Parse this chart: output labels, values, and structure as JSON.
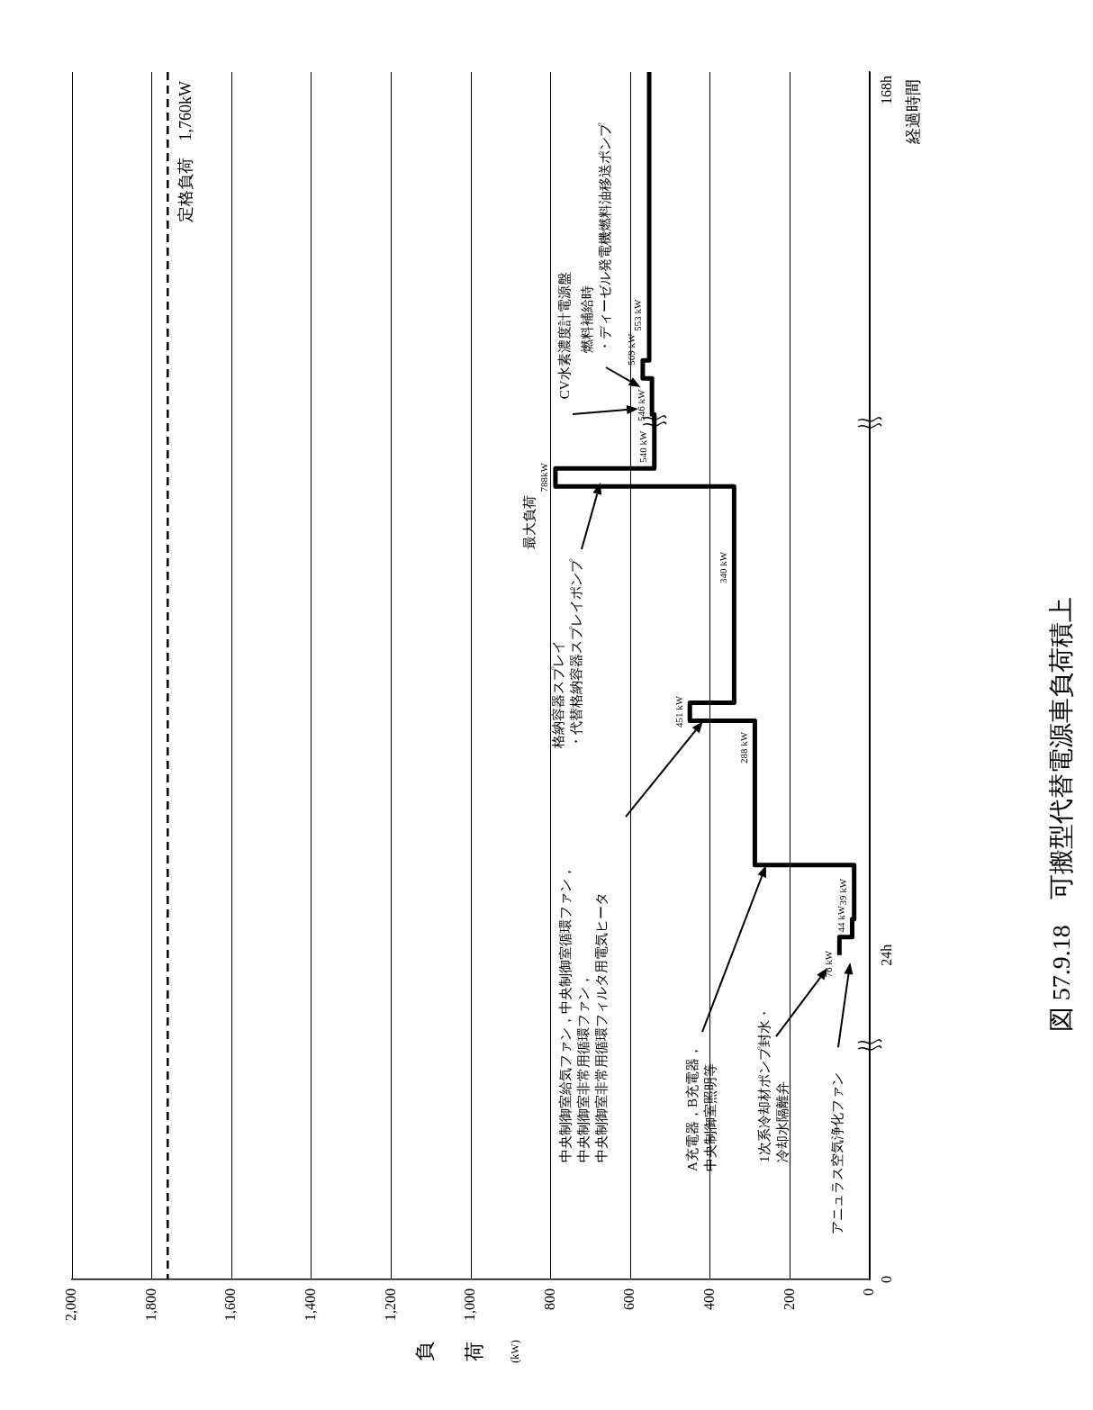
{
  "chart_data": {
    "type": "step",
    "orientation": "horizontal",
    "title": "図 57.9.18　可搬型代替電源車負荷積上",
    "xlabel": "負荷 (kW)",
    "ylabel": "経過時間",
    "categories": [
      null,
      "168h",
      null,
      null,
      null,
      null,
      null,
      null,
      null,
      null,
      null,
      null,
      null,
      null,
      null,
      null,
      null,
      null,
      null,
      null,
      null,
      null,
      null,
      null,
      null,
      null,
      null,
      null,
      null,
      null,
      null,
      null,
      null,
      null,
      null,
      null,
      null,
      null,
      null,
      null,
      null,
      null,
      null,
      null,
      null,
      null,
      null,
      null,
      null,
      "24h",
      null,
      null,
      null,
      null,
      null,
      null,
      null,
      null,
      null,
      null,
      null,
      null,
      null,
      null,
      null,
      null,
      null,
      "0"
    ],
    "series": [
      {
        "color": "#000000",
        "values": [
          553,
          553,
          553,
          553,
          553,
          553,
          553,
          553,
          553,
          553,
          553,
          553,
          553,
          553,
          553,
          553,
          553,
          569,
          546,
          546,
          540,
          540,
          540,
          788,
          340,
          340,
          340,
          340,
          340,
          340,
          340,
          340,
          340,
          340,
          340,
          340,
          451,
          288,
          288,
          288,
          288,
          288,
          288,
          288,
          288,
          39,
          39,
          39,
          44,
          76,
          null,
          null,
          null,
          null,
          null,
          null,
          null,
          null,
          null,
          null,
          null,
          null,
          null,
          null,
          null,
          null,
          null,
          null
        ],
        "value_labels": [
          null,
          null,
          null,
          null,
          null,
          null,
          null,
          null,
          null,
          null,
          null,
          null,
          null,
          null,
          "553 kW",
          null,
          null,
          "569 kW",
          null,
          "546 kW",
          null,
          null,
          "540 kW",
          "788kW",
          null,
          null,
          null,
          null,
          "340 kW",
          null,
          null,
          null,
          null,
          null,
          null,
          null,
          "451 kW",
          null,
          "288 kW",
          null,
          null,
          null,
          null,
          null,
          null,
          null,
          "39 kW",
          null,
          "44 kW",
          "76 kW",
          null,
          null,
          null,
          null,
          null,
          null,
          null,
          null,
          null,
          null,
          null,
          null,
          null,
          null,
          null,
          null,
          null,
          null
        ]
      }
    ],
    "xlim": [
      2000,
      0
    ],
    "xticks": [
      {
        "value": 2000,
        "label": "2,000"
      },
      {
        "value": 1800,
        "label": "1,800"
      },
      {
        "value": 1600,
        "label": "1,600"
      },
      {
        "value": 1400,
        "label": "1,400"
      },
      {
        "value": 1200,
        "label": "1,200"
      },
      {
        "value": 1000,
        "label": "1,000"
      },
      800,
      600,
      400,
      200,
      0
    ],
    "grid": "x",
    "legend": false,
    "marker": "none",
    "line_style": "solid",
    "ref_lines": [
      {
        "axis": "x",
        "value": 1760,
        "label": "定格負荷　1,760kW",
        "color": "#000000",
        "line_style": "dashed"
      }
    ],
    "annotations": [
      "アニュラス空気浄化ファン",
      "1次系冷却材ポンプ封水・冷却水隔離弁",
      "A充電器，B充電器，中央制御室照明等",
      "中央制御室給気ファン，中央制御室循環ファン，中央制御室非常用循環ファン，中央制御室非常用循環フィルタ用電気ヒータ",
      "格納容器スプレイ・代替格納容器スプレイポンプ",
      "最大負荷",
      "CV水素濃度計電源盤",
      "燃料補給時・ディーゼル発電機燃料油移送ポンプ"
    ]
  }
}
